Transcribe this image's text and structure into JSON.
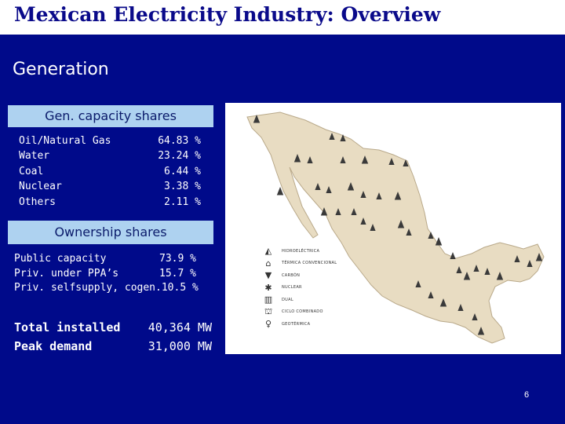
{
  "slide": {
    "title": "Mexican Electricity Industry: Overview",
    "section": "Generation",
    "page_number": "6"
  },
  "generation": {
    "label": "Gen. capacity shares",
    "rows": [
      {
        "name": "Oil/Natural Gas",
        "value": "64.83 %"
      },
      {
        "name": "Water",
        "value": "23.24 %"
      },
      {
        "name": "Coal",
        "value": "6.44 %"
      },
      {
        "name": "Nuclear",
        "value": "3.38 %"
      },
      {
        "name": "Others",
        "value": "2.11 %"
      }
    ]
  },
  "ownership": {
    "label": "Ownership shares",
    "rows": [
      {
        "name": "Public capacity",
        "value": "73.9 %"
      },
      {
        "name": "Priv. under PPA’s",
        "value": "15.7 %"
      },
      {
        "name": "Priv. selfsupply, cogen.",
        "value": "10.5 %"
      }
    ]
  },
  "totals": [
    {
      "name": "Total installed",
      "value": "40,364 MW"
    },
    {
      "name": "Peak demand",
      "value": "31,000 MW"
    }
  ],
  "map": {
    "land_color": "#e8dcc2",
    "legend": [
      {
        "icon": "hydro-icon",
        "label": "HIDROELÉCTRICA"
      },
      {
        "icon": "thermal-icon",
        "label": "TÉRMICA CONVENCIONAL"
      },
      {
        "icon": "coal-icon",
        "label": "CARBÓN"
      },
      {
        "icon": "nuclear-icon",
        "label": "NUCLEAR"
      },
      {
        "icon": "dual-icon",
        "label": "DUAL"
      },
      {
        "icon": "combined-cycle-icon",
        "label": "CICLO COMBINADO"
      },
      {
        "icon": "geothermal-icon",
        "label": "GEOTÉRMICA"
      }
    ]
  },
  "colors": {
    "background": "#000a8a",
    "title_text": "#0a0a8a",
    "label_box": "#aed2f0"
  }
}
